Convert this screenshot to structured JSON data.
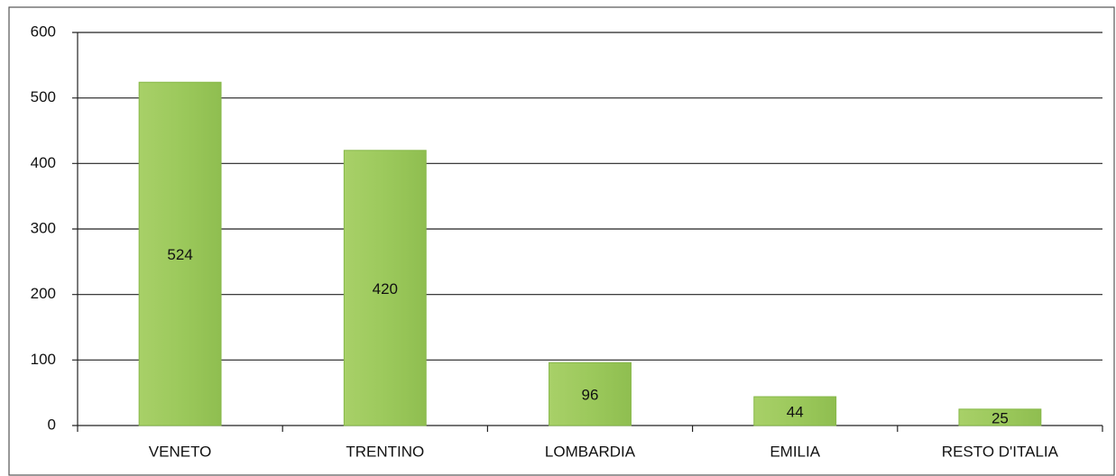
{
  "chart_data": {
    "type": "bar",
    "categories": [
      "VENETO",
      "TRENTINO",
      "LOMBARDIA",
      "EMILIA",
      "RESTO D'ITALIA"
    ],
    "values": [
      524,
      420,
      96,
      44,
      25
    ],
    "color": "#9cc95c",
    "ylim": [
      0,
      600
    ],
    "yticks": [
      0,
      100,
      200,
      300,
      400,
      500,
      600
    ],
    "grid": true
  }
}
